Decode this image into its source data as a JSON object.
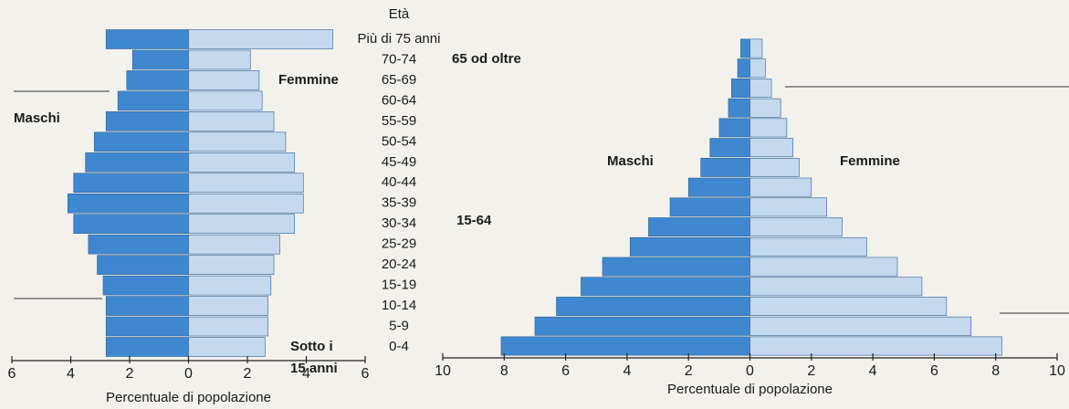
{
  "chart_data": [
    {
      "type": "pyramid",
      "category_axis_title": "Età",
      "categories": [
        "0-4",
        "5-9",
        "10-14",
        "15-19",
        "20-24",
        "25-29",
        "30-34",
        "35-39",
        "40-44",
        "45-49",
        "50-54",
        "55-59",
        "60-64",
        "65-69",
        "70-74",
        "Più di 75 anni"
      ],
      "series": [
        {
          "name": "Maschi",
          "color": "#3f88d0",
          "values": [
            2.8,
            2.8,
            2.8,
            2.9,
            3.1,
            3.4,
            3.9,
            4.1,
            3.9,
            3.5,
            3.2,
            2.8,
            2.4,
            2.1,
            1.9,
            2.8
          ]
        },
        {
          "name": "Femmine",
          "color": "#c4d9ee",
          "values": [
            2.6,
            2.7,
            2.7,
            2.8,
            2.9,
            3.1,
            3.6,
            3.9,
            3.9,
            3.6,
            3.3,
            2.9,
            2.5,
            2.4,
            2.1,
            4.9
          ]
        }
      ],
      "xlim": [
        -6,
        6
      ],
      "xticks": [
        {
          "value": -6,
          "label": "6"
        },
        {
          "value": -4,
          "label": "4"
        },
        {
          "value": -2,
          "label": "2"
        },
        0,
        2,
        4,
        6
      ],
      "xlabel": "Percentuale di popolazione",
      "annotations": [
        "65 od oltre",
        "15-64",
        "Sotto i",
        "15 anni"
      ]
    },
    {
      "type": "pyramid",
      "series": [
        {
          "name": "Maschi",
          "color": "#3f88d0",
          "values": [
            8.1,
            7.0,
            6.3,
            5.5,
            4.8,
            3.9,
            3.3,
            2.6,
            2.0,
            1.6,
            1.3,
            1.0,
            0.7,
            0.6,
            0.4,
            0.3
          ]
        },
        {
          "name": "Femmine",
          "color": "#c4d9ee",
          "values": [
            8.2,
            7.2,
            6.4,
            5.6,
            4.8,
            3.8,
            3.0,
            2.5,
            2.0,
            1.6,
            1.4,
            1.2,
            1.0,
            0.7,
            0.5,
            0.4
          ]
        }
      ],
      "xlim": [
        -10,
        10
      ],
      "xticks": [
        {
          "value": -10,
          "label": "10"
        },
        {
          "value": -8,
          "label": "8"
        },
        {
          "value": -6,
          "label": "6"
        },
        {
          "value": -4,
          "label": "4"
        },
        {
          "value": -2,
          "label": "2"
        },
        0,
        2,
        4,
        6,
        8,
        10
      ],
      "xlabel": "Percentuale di popolazione"
    }
  ]
}
